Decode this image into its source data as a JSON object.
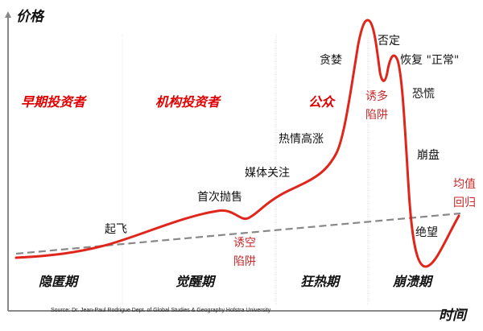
{
  "axes": {
    "y_label": "价格",
    "x_label": "时间"
  },
  "investor_groups": [
    "早期投资者",
    "机构投资者",
    "公众"
  ],
  "phases": [
    "隐匿期",
    "觉醒期",
    "狂热期",
    "崩溃期"
  ],
  "curve_labels": {
    "takeoff": "起飞",
    "first_sell": "首次抛售",
    "media": "媒体关注",
    "enthusiasm": "热情高涨",
    "greed": "贪婪",
    "denial": "否定",
    "return_normal": "恢复 \"正常\"",
    "fear": "恐慌",
    "capitulation": "崩盘",
    "despair": "绝望"
  },
  "traps": {
    "bear_trap": [
      "诱空",
      "陷阱"
    ],
    "bull_trap": [
      "诱多",
      "陷阱"
    ],
    "mean_reversion": [
      "均值",
      "回归"
    ]
  },
  "source": "Source: Dr. Jean-Paul Rodrigue Dept. of Global Studies & Geography Hofstra University",
  "colors": {
    "curve": "#e0261b",
    "accent_text": "#e00000",
    "trap_text": "#c8282a",
    "trend": "#888888",
    "axis": "#888888"
  }
}
